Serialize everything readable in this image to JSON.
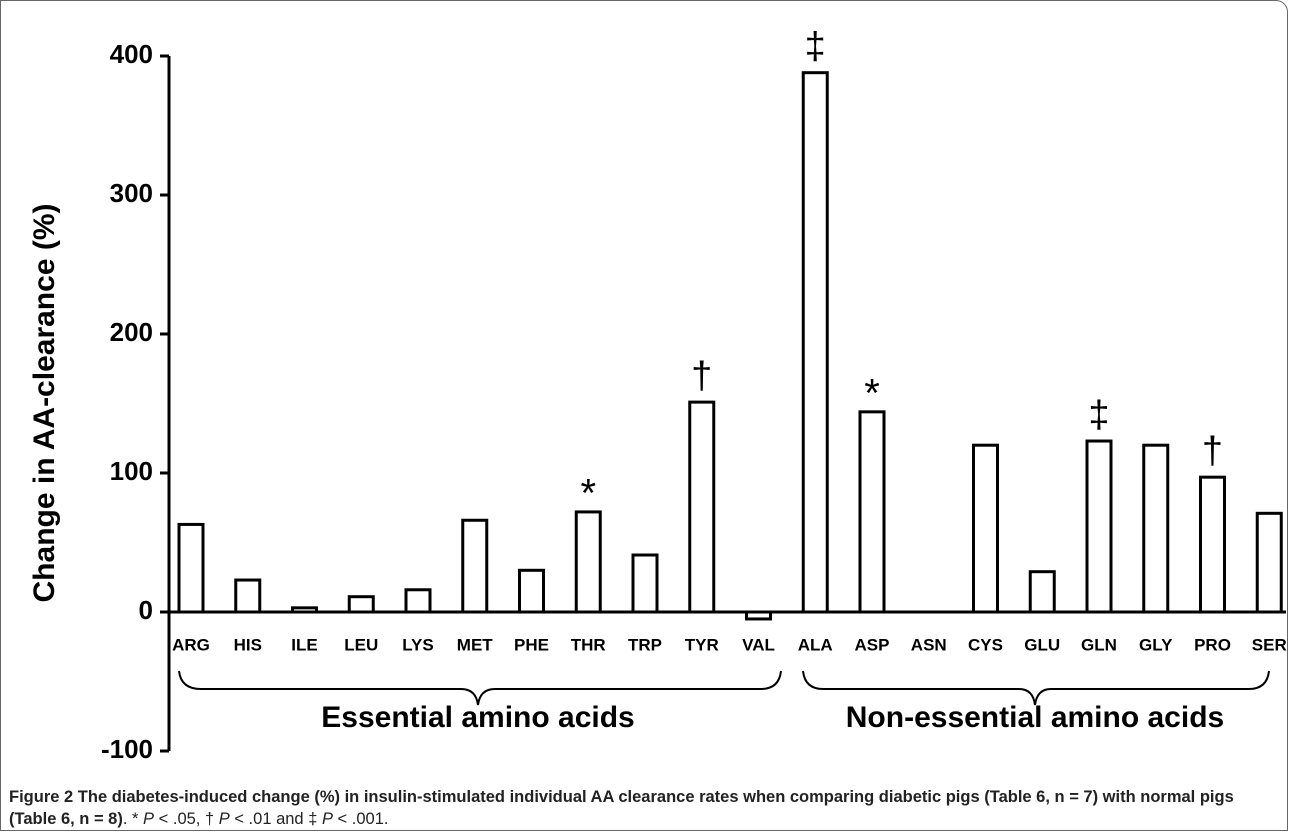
{
  "chart_data": {
    "type": "bar",
    "y_label": "Change in AA-clearance (%)",
    "categories": [
      "ARG",
      "HIS",
      "ILE",
      "LEU",
      "LYS",
      "MET",
      "PHE",
      "THR",
      "TRP",
      "TYR",
      "VAL",
      "ALA",
      "ASP",
      "ASN",
      "CYS",
      "GLU",
      "GLN",
      "GLY",
      "PRO",
      "SER"
    ],
    "values": [
      63,
      23,
      3,
      11,
      16,
      66,
      30,
      72,
      41,
      151,
      -5,
      388,
      144,
      0,
      120,
      29,
      123,
      120,
      97,
      71
    ],
    "significance": [
      null,
      null,
      null,
      null,
      null,
      null,
      null,
      "*",
      null,
      "†",
      null,
      "‡",
      "*",
      null,
      null,
      null,
      "‡",
      null,
      "†",
      null
    ],
    "groups": [
      "Essential amino acids",
      "Non-essential amino acids"
    ],
    "color": "#ffffff",
    "edge_color": "#000000",
    "ylim": [
      -100,
      400
    ],
    "yticks": [
      -100,
      0,
      100,
      200,
      300,
      400
    ],
    "grid": false
  },
  "caption": {
    "label": "Figure 2",
    "title": "The diabetes-induced change (%) in insulin-stimulated individual AA clearance rates when comparing diabetic pigs (Table 6, n = 7) with normal pigs (Table 6, n = 8)",
    "note": [
      ". * ",
      "P",
      " < .05, † ",
      "P",
      " < .01 and ‡ ",
      "P",
      " < .001."
    ]
  }
}
